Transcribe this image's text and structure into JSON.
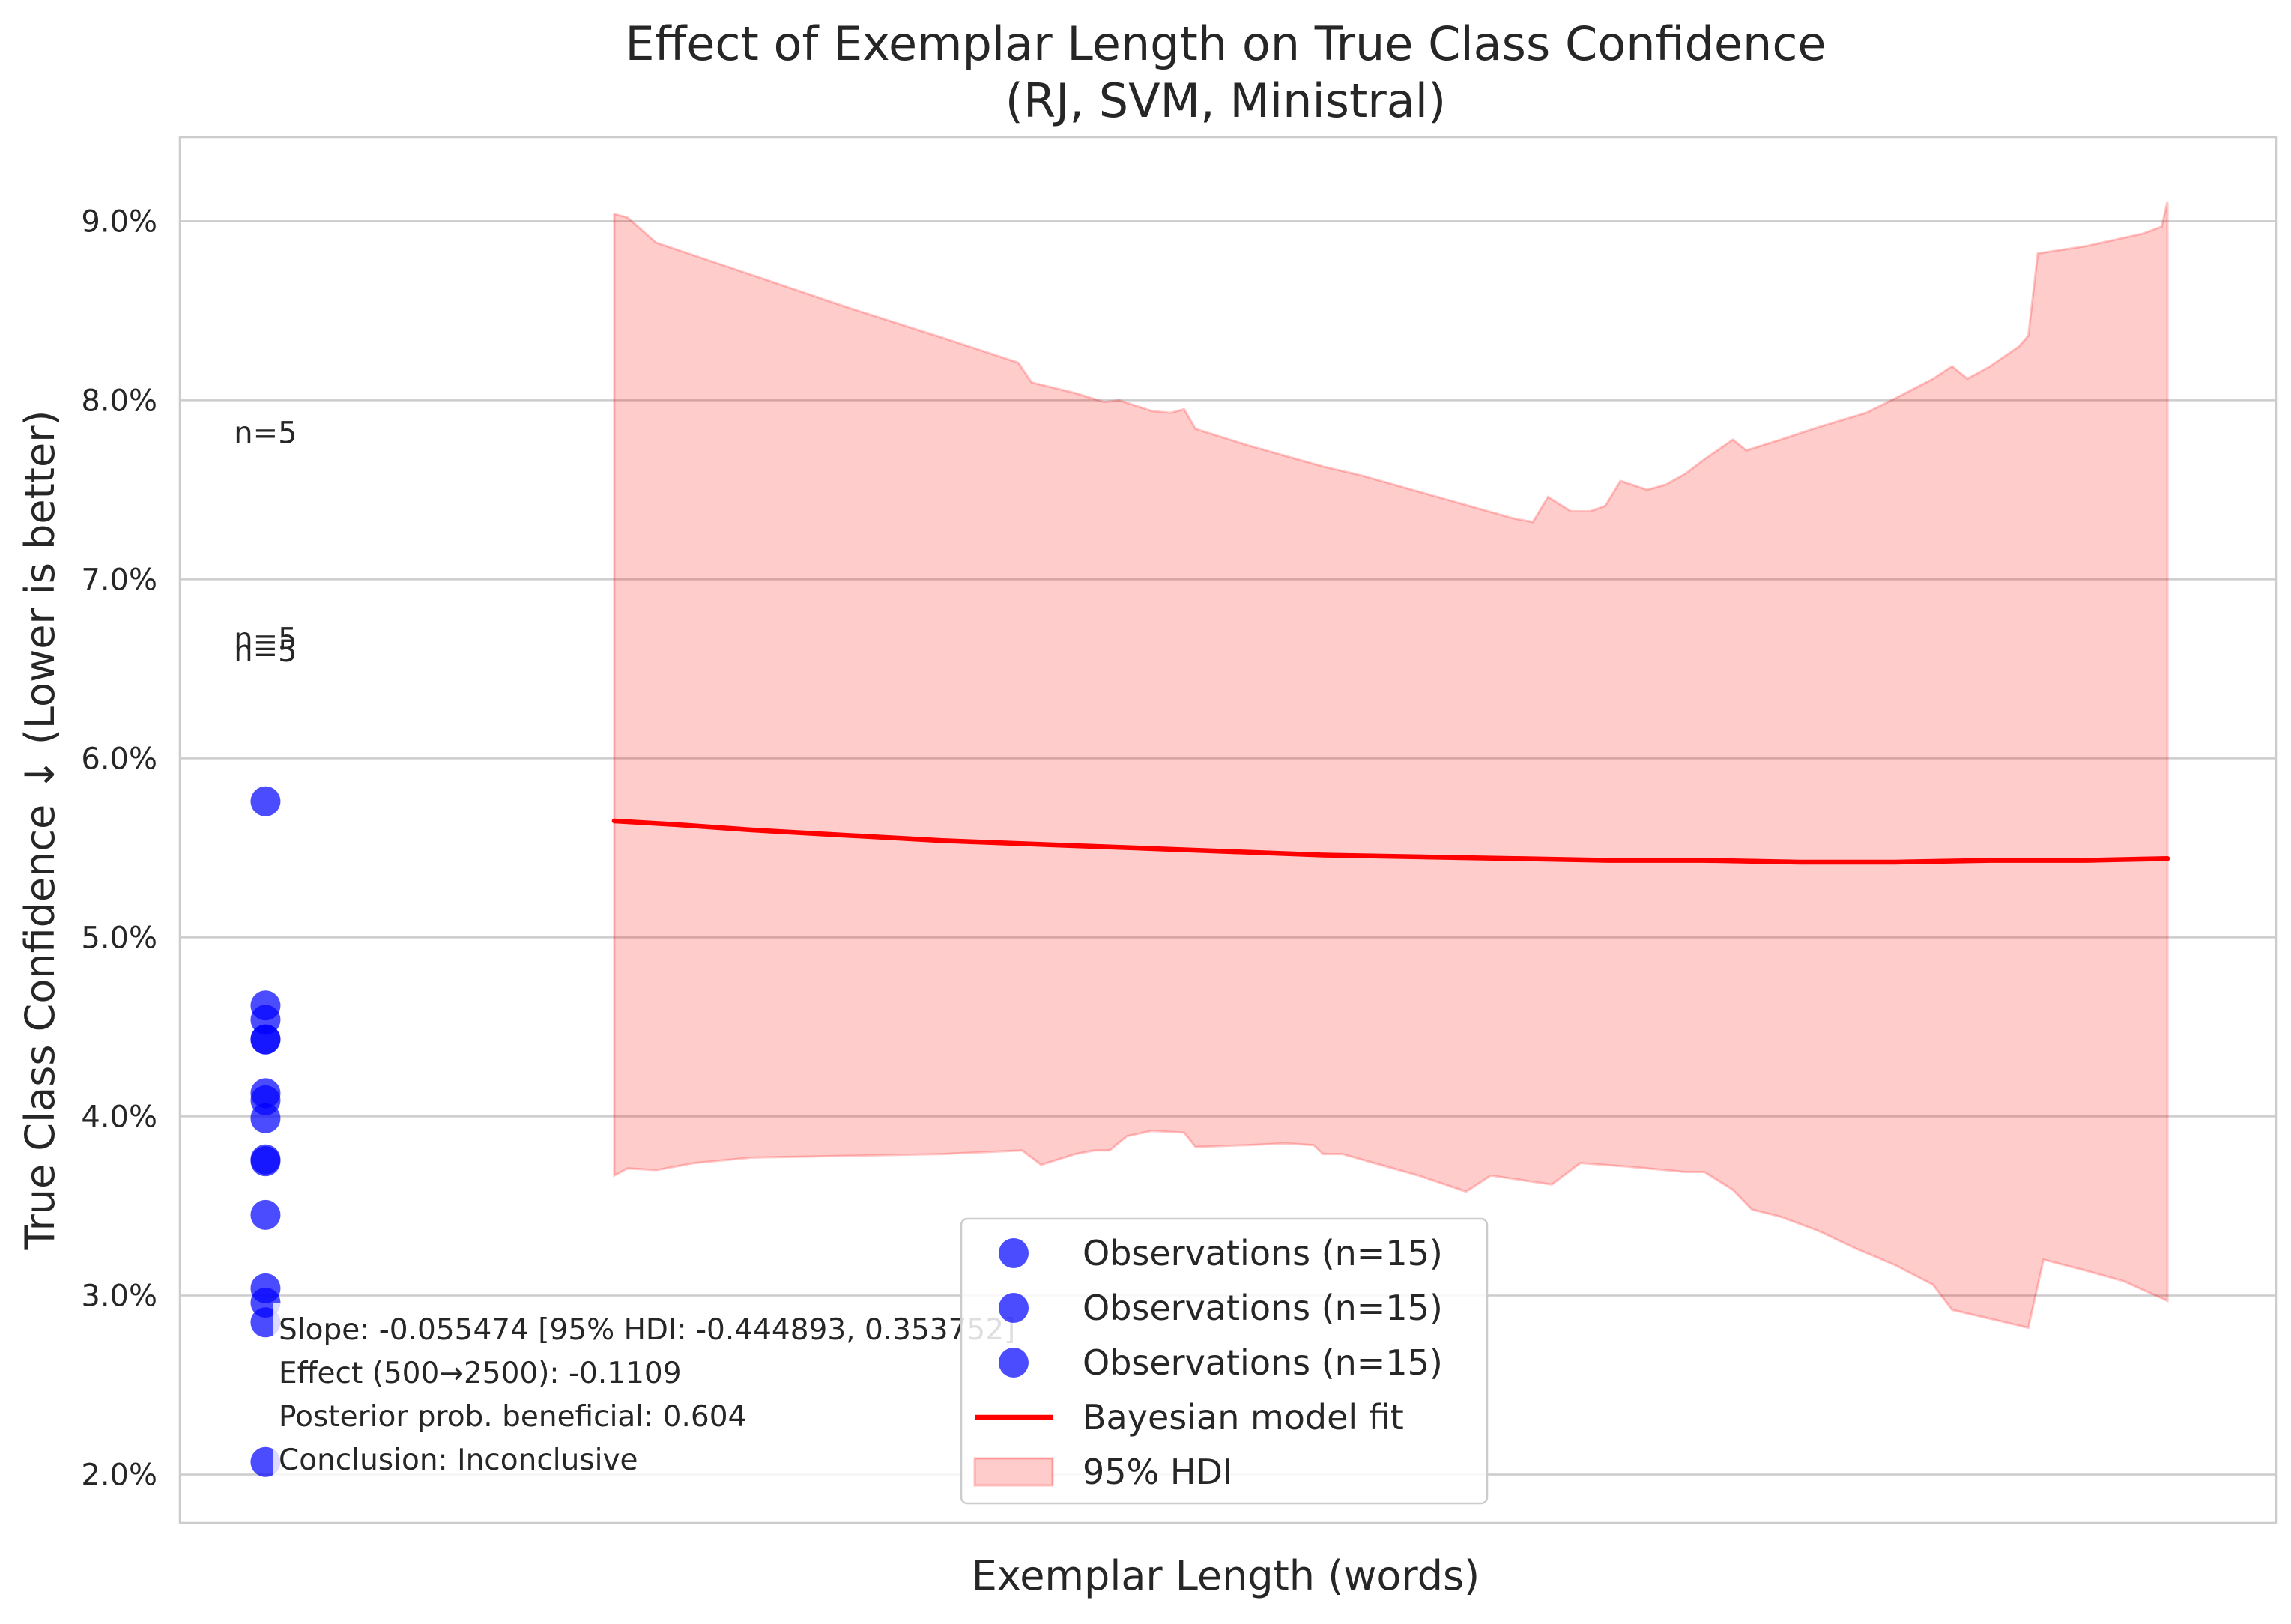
{
  "chart_data": {
    "type": "scatter",
    "title": "Effect of Exemplar Length on True Class Confidence",
    "subtitle": "(RJ, SVM, Ministral)",
    "xlabel": "Exemplar Length (words)",
    "ylabel": "True Class Confidence ↓ (Lower is better)",
    "xlim": [
      0,
      11
    ],
    "ylim": [
      1.73,
      9.47
    ],
    "y_unit_suffix": "%",
    "yticks": [
      2.0,
      3.0,
      4.0,
      5.0,
      6.0,
      7.0,
      8.0,
      9.0
    ],
    "ytick_labels": [
      "2.0%",
      "3.0%",
      "4.0%",
      "5.0%",
      "6.0%",
      "7.0%",
      "8.0%",
      "9.0%"
    ],
    "grid": true,
    "legend_position": "lower center",
    "colors": {
      "observations": "#0000ff",
      "fit": "#ff0000",
      "hdi": "#ff0000"
    },
    "observations": [
      {
        "x": 0.45,
        "y": 5.76
      },
      {
        "x": 0.45,
        "y": 4.62
      },
      {
        "x": 0.45,
        "y": 4.54
      },
      {
        "x": 0.45,
        "y": 4.43
      },
      {
        "x": 0.45,
        "y": 4.43
      },
      {
        "x": 0.45,
        "y": 4.13
      },
      {
        "x": 0.45,
        "y": 4.09
      },
      {
        "x": 0.45,
        "y": 3.99
      },
      {
        "x": 0.45,
        "y": 3.76
      },
      {
        "x": 0.45,
        "y": 3.75
      },
      {
        "x": 0.45,
        "y": 3.45
      },
      {
        "x": 0.45,
        "y": 3.04
      },
      {
        "x": 0.45,
        "y": 2.96
      },
      {
        "x": 0.45,
        "y": 2.85
      },
      {
        "x": 0.45,
        "y": 2.07
      }
    ],
    "count_labels": [
      {
        "x": 0.45,
        "y": 7.82,
        "text": "n=5"
      },
      {
        "x": 0.45,
        "y": 6.67,
        "text": "n=5"
      },
      {
        "x": 0.45,
        "y": 6.6,
        "text": "n=5"
      }
    ],
    "fit_line": {
      "name": "Bayesian model fit",
      "points": [
        [
          2.28,
          5.65
        ],
        [
          2.6,
          5.63
        ],
        [
          3.0,
          5.6
        ],
        [
          3.5,
          5.57
        ],
        [
          4.0,
          5.54
        ],
        [
          4.5,
          5.52
        ],
        [
          5.0,
          5.5
        ],
        [
          5.5,
          5.48
        ],
        [
          6.0,
          5.46
        ],
        [
          6.5,
          5.45
        ],
        [
          7.0,
          5.44
        ],
        [
          7.5,
          5.43
        ],
        [
          8.0,
          5.43
        ],
        [
          8.5,
          5.42
        ],
        [
          9.0,
          5.42
        ],
        [
          9.5,
          5.43
        ],
        [
          10.0,
          5.43
        ],
        [
          10.43,
          5.44
        ]
      ]
    },
    "hdi": {
      "name": "95% HDI",
      "upper": [
        [
          2.28,
          9.04
        ],
        [
          2.35,
          9.02
        ],
        [
          2.5,
          8.88
        ],
        [
          3.0,
          8.7
        ],
        [
          3.5,
          8.52
        ],
        [
          4.0,
          8.35
        ],
        [
          4.4,
          8.21
        ],
        [
          4.47,
          8.1
        ],
        [
          4.7,
          8.04
        ],
        [
          4.85,
          7.99
        ],
        [
          4.93,
          8.0
        ],
        [
          5.1,
          7.94
        ],
        [
          5.2,
          7.93
        ],
        [
          5.27,
          7.95
        ],
        [
          5.33,
          7.84
        ],
        [
          5.6,
          7.75
        ],
        [
          5.8,
          7.69
        ],
        [
          6.0,
          7.63
        ],
        [
          6.2,
          7.58
        ],
        [
          6.5,
          7.49
        ],
        [
          6.8,
          7.4
        ],
        [
          7.0,
          7.34
        ],
        [
          7.1,
          7.32
        ],
        [
          7.18,
          7.46
        ],
        [
          7.3,
          7.38
        ],
        [
          7.4,
          7.38
        ],
        [
          7.48,
          7.41
        ],
        [
          7.56,
          7.55
        ],
        [
          7.7,
          7.5
        ],
        [
          7.8,
          7.53
        ],
        [
          7.9,
          7.59
        ],
        [
          8.0,
          7.67
        ],
        [
          8.15,
          7.78
        ],
        [
          8.22,
          7.72
        ],
        [
          8.4,
          7.78
        ],
        [
          8.6,
          7.85
        ],
        [
          8.85,
          7.93
        ],
        [
          9.0,
          8.01
        ],
        [
          9.2,
          8.12
        ],
        [
          9.3,
          8.19
        ],
        [
          9.38,
          8.12
        ],
        [
          9.5,
          8.19
        ],
        [
          9.65,
          8.3
        ],
        [
          9.7,
          8.36
        ],
        [
          9.75,
          8.82
        ],
        [
          10.0,
          8.86
        ],
        [
          10.3,
          8.93
        ],
        [
          10.4,
          8.97
        ],
        [
          10.43,
          9.11
        ]
      ],
      "lower": [
        [
          2.28,
          3.67
        ],
        [
          2.35,
          3.71
        ],
        [
          2.5,
          3.7
        ],
        [
          2.7,
          3.74
        ],
        [
          3.0,
          3.77
        ],
        [
          3.5,
          3.78
        ],
        [
          4.0,
          3.79
        ],
        [
          4.42,
          3.81
        ],
        [
          4.52,
          3.73
        ],
        [
          4.7,
          3.79
        ],
        [
          4.8,
          3.81
        ],
        [
          4.88,
          3.81
        ],
        [
          4.97,
          3.89
        ],
        [
          5.1,
          3.92
        ],
        [
          5.27,
          3.91
        ],
        [
          5.33,
          3.83
        ],
        [
          5.6,
          3.84
        ],
        [
          5.8,
          3.85
        ],
        [
          5.95,
          3.84
        ],
        [
          6.0,
          3.79
        ],
        [
          6.1,
          3.79
        ],
        [
          6.3,
          3.73
        ],
        [
          6.5,
          3.67
        ],
        [
          6.75,
          3.58
        ],
        [
          6.88,
          3.67
        ],
        [
          7.2,
          3.62
        ],
        [
          7.35,
          3.74
        ],
        [
          7.6,
          3.72
        ],
        [
          7.9,
          3.69
        ],
        [
          8.0,
          3.69
        ],
        [
          8.15,
          3.59
        ],
        [
          8.25,
          3.48
        ],
        [
          8.4,
          3.44
        ],
        [
          8.6,
          3.36
        ],
        [
          8.8,
          3.26
        ],
        [
          9.0,
          3.17
        ],
        [
          9.2,
          3.06
        ],
        [
          9.3,
          2.92
        ],
        [
          9.5,
          2.87
        ],
        [
          9.7,
          2.82
        ],
        [
          9.78,
          3.2
        ],
        [
          10.0,
          3.14
        ],
        [
          10.2,
          3.08
        ],
        [
          10.43,
          2.97
        ]
      ]
    },
    "stats_lines": [
      "Slope: -0.055474 [95% HDI: -0.444893, 0.353752]",
      "Effect (500→2500): -0.1109",
      "Posterior prob. beneficial: 0.604",
      "Conclusion: Inconclusive"
    ],
    "legend": [
      {
        "label": "Observations (n=15)",
        "kind": "marker"
      },
      {
        "label": "Observations (n=15)",
        "kind": "marker"
      },
      {
        "label": "Observations (n=15)",
        "kind": "marker"
      },
      {
        "label": "Bayesian model fit",
        "kind": "line"
      },
      {
        "label": "95% HDI",
        "kind": "patch"
      }
    ]
  }
}
